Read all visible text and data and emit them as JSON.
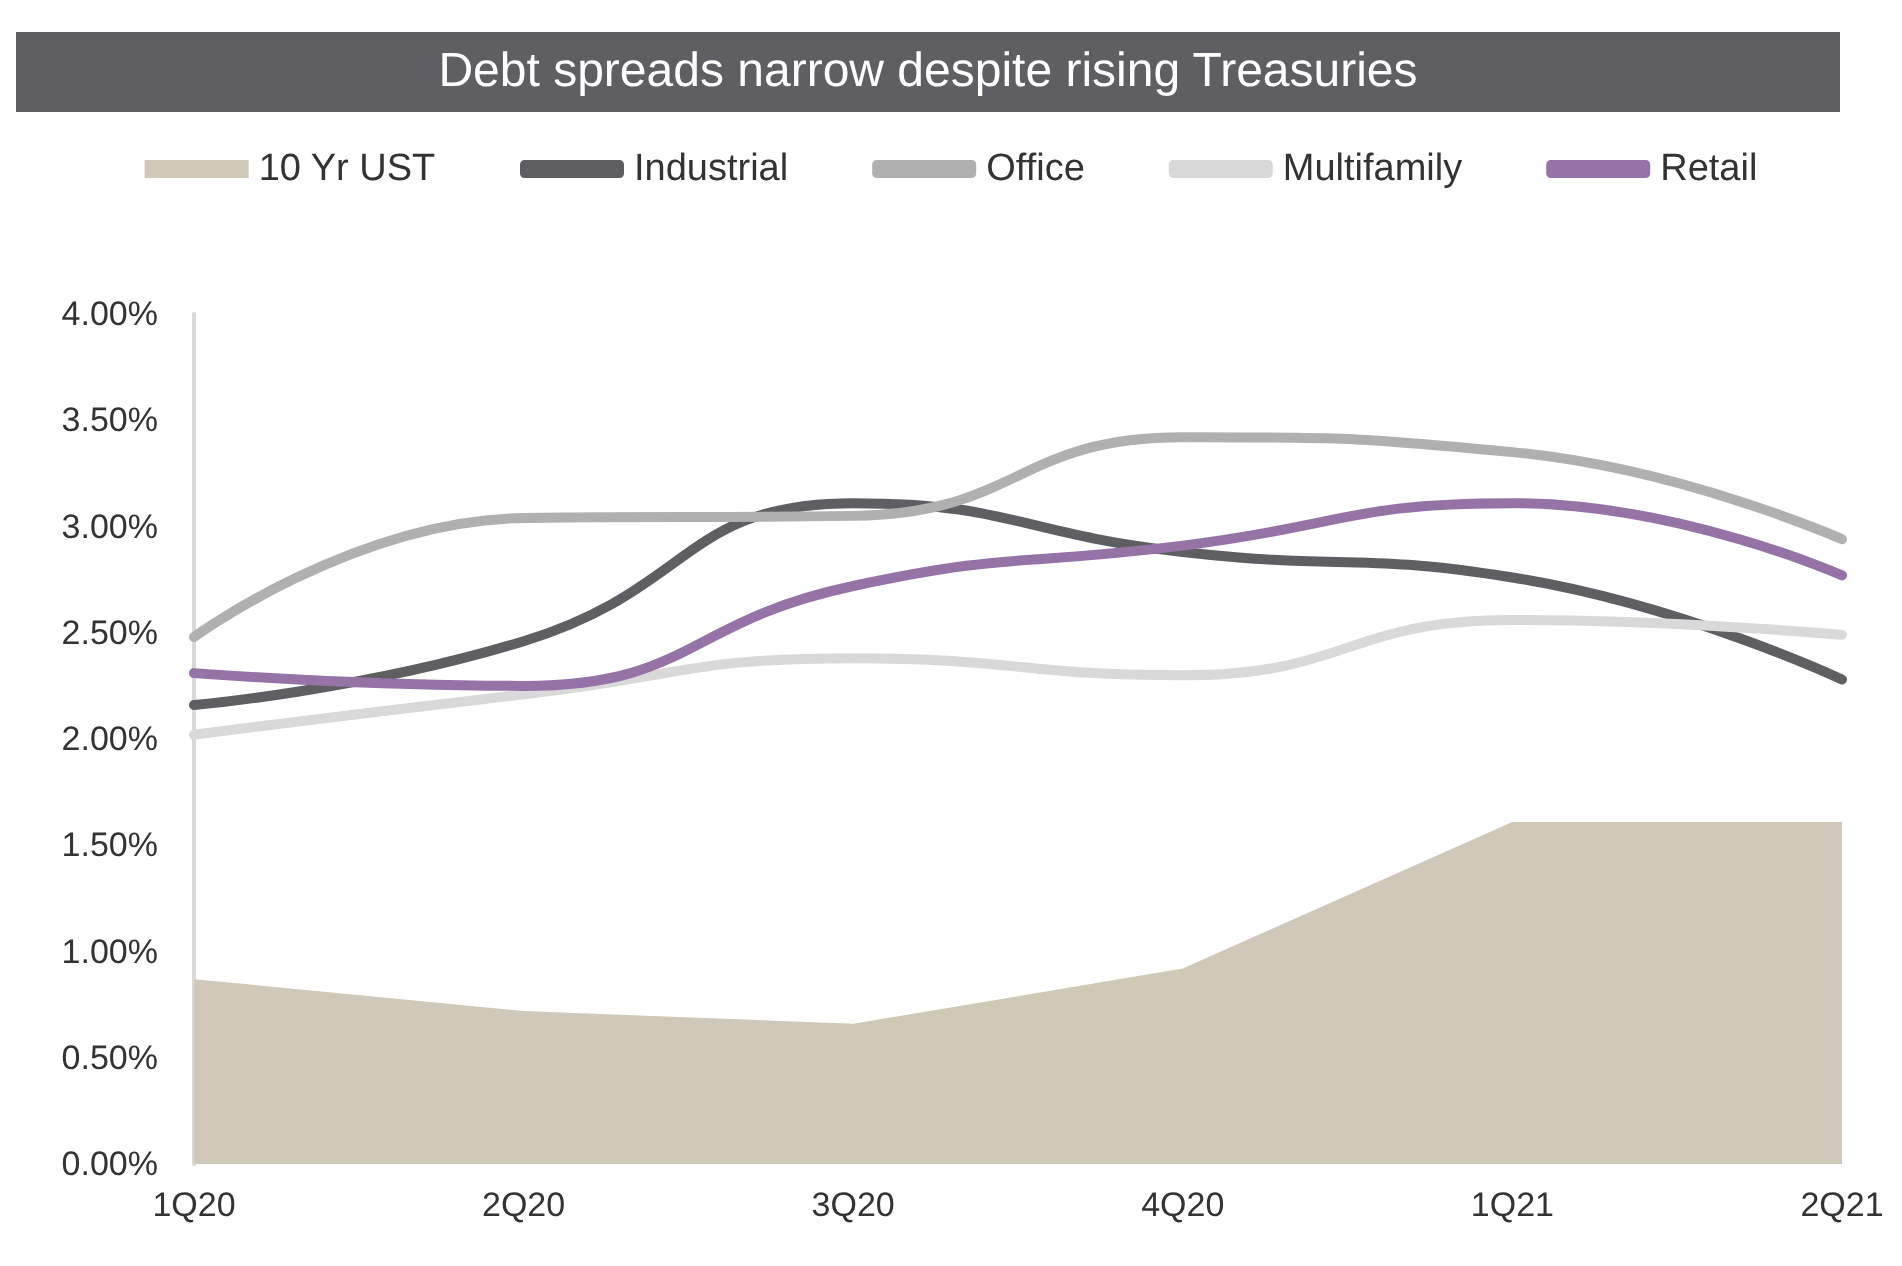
{
  "chart_data": {
    "type": "line",
    "title": "Debt spreads narrow despite rising Treasuries",
    "categories": [
      "1Q20",
      "2Q20",
      "3Q20",
      "4Q20",
      "1Q21",
      "2Q21"
    ],
    "series": [
      {
        "name": "10 Yr UST",
        "type": "area",
        "color": "#d0c9b9",
        "values": [
          0.87,
          0.72,
          0.66,
          0.92,
          1.61,
          1.61
        ]
      },
      {
        "name": "Industrial",
        "color": "#5f5f63",
        "values": [
          2.16,
          2.46,
          3.11,
          2.88,
          2.76,
          2.28
        ]
      },
      {
        "name": "Office",
        "color": "#b0b0b0",
        "values": [
          2.48,
          3.04,
          3.05,
          3.42,
          3.35,
          2.94
        ]
      },
      {
        "name": "Multifamily",
        "color": "#d9d9d9",
        "values": [
          2.02,
          2.21,
          2.38,
          2.3,
          2.56,
          2.49
        ]
      },
      {
        "name": "Retail",
        "color": "#9673a6",
        "values": [
          2.31,
          2.25,
          2.72,
          2.91,
          3.11,
          2.77
        ]
      }
    ],
    "ylim": [
      0,
      4
    ],
    "yticks": [
      {
        "value": 0,
        "label": "0.00%"
      },
      {
        "value": 0.5,
        "label": "0.50%"
      },
      {
        "value": 1,
        "label": "1.00%"
      },
      {
        "value": 1.5,
        "label": "1.50%"
      },
      {
        "value": 2,
        "label": "2.00%"
      },
      {
        "value": 2.5,
        "label": "2.50%"
      },
      {
        "value": 3,
        "label": "3.00%"
      },
      {
        "value": 3.5,
        "label": "3.50%"
      },
      {
        "value": 4,
        "label": "4.00%"
      }
    ],
    "grid": false,
    "legend": "top",
    "marker": "none",
    "line_style": "solid"
  }
}
